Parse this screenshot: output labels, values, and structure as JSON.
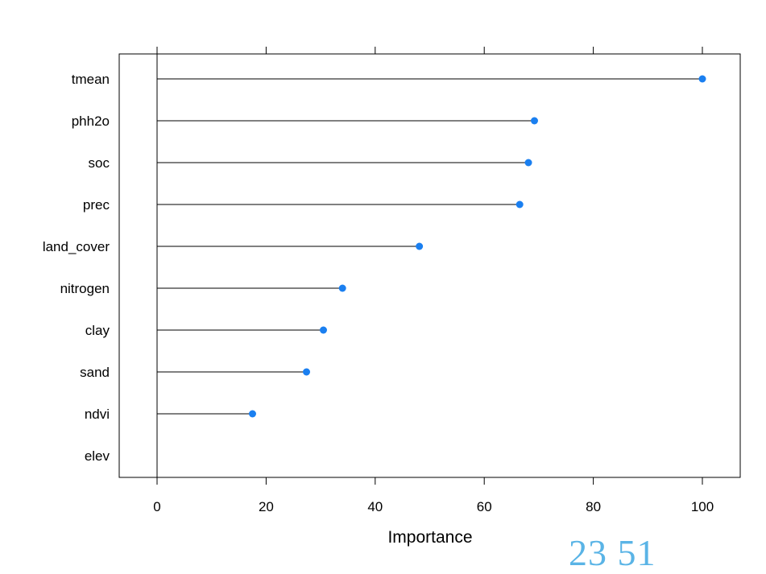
{
  "chart_data": {
    "type": "dotplot",
    "orientation": "horizontal",
    "categories": [
      "tmean",
      "phh2o",
      "soc",
      "prec",
      "land_cover",
      "nitrogen",
      "clay",
      "sand",
      "ndvi",
      "elev"
    ],
    "values": [
      100,
      69.2,
      68.1,
      66.5,
      48.1,
      34.0,
      30.5,
      27.4,
      17.5,
      0
    ],
    "xlabel": "Importance",
    "xticks": [
      0,
      20,
      40,
      60,
      80,
      100
    ],
    "xlim": [
      -7,
      107
    ],
    "marker_color": "#1a7ff0",
    "line_color": "#000000"
  },
  "overlay_text": "23  51"
}
